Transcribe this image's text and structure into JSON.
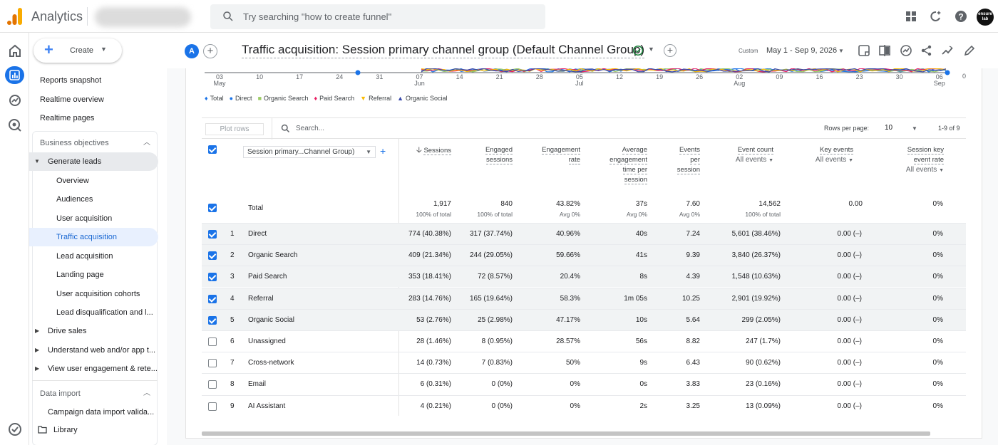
{
  "app": {
    "name": "Analytics",
    "search_placeholder": "Try searching \"how to create funnel\"",
    "avatar_text": "ensure lab"
  },
  "nav": {
    "create_label": "Create",
    "items_top": [
      "Reports snapshot",
      "Realtime overview",
      "Realtime pages"
    ],
    "business_objectives": "Business objectives",
    "generate_leads": "Generate leads",
    "sub_items": [
      "Overview",
      "Audiences",
      "User acquisition",
      "Traffic acquisition",
      "Lead acquisition",
      "Landing page",
      "User acquisition cohorts",
      "Lead disqualification and l..."
    ],
    "collapsed": [
      "Drive sales",
      "Understand web and/or app t...",
      "View user engagement & rete..."
    ],
    "data_import": "Data import",
    "campaign": "Campaign data import valida...",
    "library": "Library"
  },
  "header": {
    "avatar_letter": "A",
    "title": "Traffic acquisition: Session primary channel group (Default Channel Group)",
    "date_custom": "Custom",
    "date_range": "May 1 - Sep 9, 2026"
  },
  "chart": {
    "x_ticks": [
      {
        "d": "03",
        "m": "May"
      },
      {
        "d": "10",
        "m": ""
      },
      {
        "d": "17",
        "m": ""
      },
      {
        "d": "24",
        "m": ""
      },
      {
        "d": "31",
        "m": ""
      },
      {
        "d": "07",
        "m": "Jun"
      },
      {
        "d": "14",
        "m": ""
      },
      {
        "d": "21",
        "m": ""
      },
      {
        "d": "28",
        "m": ""
      },
      {
        "d": "05",
        "m": "Jul"
      },
      {
        "d": "12",
        "m": ""
      },
      {
        "d": "19",
        "m": ""
      },
      {
        "d": "26",
        "m": ""
      },
      {
        "d": "02",
        "m": "Aug"
      },
      {
        "d": "09",
        "m": ""
      },
      {
        "d": "16",
        "m": ""
      },
      {
        "d": "23",
        "m": ""
      },
      {
        "d": "30",
        "m": ""
      },
      {
        "d": "06",
        "m": "Sep"
      }
    ],
    "y_right_label": "0",
    "legend": [
      {
        "name": "Total",
        "color": "#1a73e8",
        "symbol": "♦"
      },
      {
        "name": "Direct",
        "color": "#1a73e8",
        "symbol": "●"
      },
      {
        "name": "Organic Search",
        "color": "#9ccc65",
        "symbol": "■"
      },
      {
        "name": "Paid Search",
        "color": "#e91e63",
        "symbol": "♦"
      },
      {
        "name": "Referral",
        "color": "#fbbc04",
        "symbol": "▼"
      },
      {
        "name": "Organic Social",
        "color": "#3949ab",
        "symbol": "▲"
      }
    ]
  },
  "toolbar": {
    "plot_rows": "Plot rows",
    "search_placeholder": "Search...",
    "rows_per_page_label": "Rows per page:",
    "rows_per_page": "10",
    "pager": "1-9 of 9"
  },
  "table": {
    "dimension": "Session primary...Channel Group)",
    "headers": {
      "sessions": "Sessions",
      "engaged": [
        "Engaged",
        "sessions"
      ],
      "engagement_rate": [
        "Engagement",
        "rate"
      ],
      "avg_time": [
        "Average",
        "engagement",
        "time per",
        "session"
      ],
      "events_per": [
        "Events",
        "per",
        "session"
      ],
      "event_count": "Event count",
      "event_count_sub": "All events",
      "key_events": "Key events",
      "key_events_sub": "All events",
      "key_rate": [
        "Session key",
        "event rate"
      ],
      "key_rate_sub": "All events"
    },
    "total": {
      "label": "Total",
      "sessions": "1,917",
      "sessions_sub": "100% of total",
      "engaged": "840",
      "engaged_sub": "100% of total",
      "rate": "43.82%",
      "rate_sub": "Avg 0%",
      "time": "37s",
      "time_sub": "Avg 0%",
      "events_per": "7.60",
      "events_per_sub": "Avg 0%",
      "event_count": "14,562",
      "event_count_sub": "100% of total",
      "key_events": "0.00",
      "key_rate": "0%"
    },
    "rows": [
      {
        "n": "1",
        "name": "Direct",
        "sessions": "774 (40.38%)",
        "engaged": "317 (37.74%)",
        "rate": "40.96%",
        "time": "40s",
        "events_per": "7.24",
        "event_count": "5,601 (38.46%)",
        "key_events": "0.00 (–)",
        "key_rate": "0%",
        "checked": true
      },
      {
        "n": "2",
        "name": "Organic Search",
        "sessions": "409 (21.34%)",
        "engaged": "244 (29.05%)",
        "rate": "59.66%",
        "time": "41s",
        "events_per": "9.39",
        "event_count": "3,840 (26.37%)",
        "key_events": "0.00 (–)",
        "key_rate": "0%",
        "checked": true
      },
      {
        "n": "3",
        "name": "Paid Search",
        "sessions": "353 (18.41%)",
        "engaged": "72 (8.57%)",
        "rate": "20.4%",
        "time": "8s",
        "events_per": "4.39",
        "event_count": "1,548 (10.63%)",
        "key_events": "0.00 (–)",
        "key_rate": "0%",
        "checked": true
      },
      {
        "n": "4",
        "name": "Referral",
        "sessions": "283 (14.76%)",
        "engaged": "165 (19.64%)",
        "rate": "58.3%",
        "time": "1m 05s",
        "events_per": "10.25",
        "event_count": "2,901 (19.92%)",
        "key_events": "0.00 (–)",
        "key_rate": "0%",
        "checked": true
      },
      {
        "n": "5",
        "name": "Organic Social",
        "sessions": "53 (2.76%)",
        "engaged": "25 (2.98%)",
        "rate": "47.17%",
        "time": "10s",
        "events_per": "5.64",
        "event_count": "299 (2.05%)",
        "key_events": "0.00 (–)",
        "key_rate": "0%",
        "checked": true
      },
      {
        "n": "6",
        "name": "Unassigned",
        "sessions": "28 (1.46%)",
        "engaged": "8 (0.95%)",
        "rate": "28.57%",
        "time": "56s",
        "events_per": "8.82",
        "event_count": "247 (1.7%)",
        "key_events": "0.00 (–)",
        "key_rate": "0%",
        "checked": false
      },
      {
        "n": "7",
        "name": "Cross-network",
        "sessions": "14 (0.73%)",
        "engaged": "7 (0.83%)",
        "rate": "50%",
        "time": "9s",
        "events_per": "6.43",
        "event_count": "90 (0.62%)",
        "key_events": "0.00 (–)",
        "key_rate": "0%",
        "checked": false
      },
      {
        "n": "8",
        "name": "Email",
        "sessions": "6 (0.31%)",
        "engaged": "0 (0%)",
        "rate": "0%",
        "time": "0s",
        "events_per": "3.83",
        "event_count": "23 (0.16%)",
        "key_events": "0.00 (–)",
        "key_rate": "0%",
        "checked": false
      },
      {
        "n": "9",
        "name": "AI Assistant",
        "sessions": "4 (0.21%)",
        "engaged": "0 (0%)",
        "rate": "0%",
        "time": "2s",
        "events_per": "3.25",
        "event_count": "13 (0.09%)",
        "key_events": "0.00 (–)",
        "key_rate": "0%",
        "checked": false
      }
    ]
  }
}
